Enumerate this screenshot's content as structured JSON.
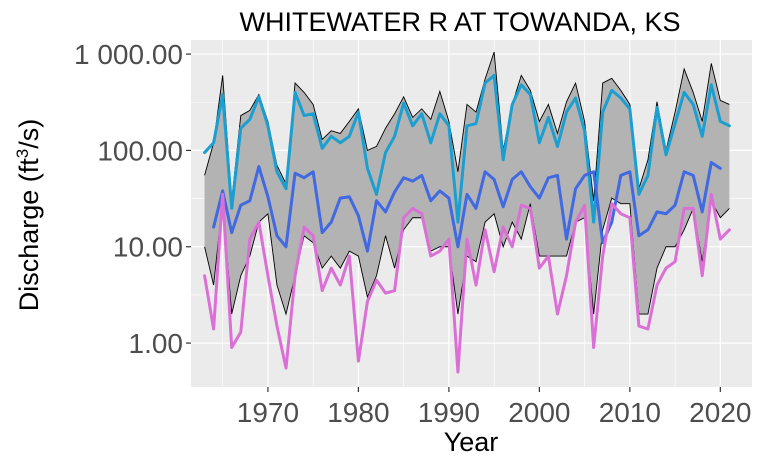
{
  "chart_data": {
    "type": "line",
    "title": "WHITEWATER R AT TOWANDA, KS",
    "xlabel": "Year",
    "ylabel": {
      "prefix": "Discharge (ft",
      "sup": "3",
      "suffix": "/s)"
    },
    "y_scale": "log10",
    "xlim": [
      1961.5,
      2023.5
    ],
    "ylim": [
      0.35,
      1400
    ],
    "x_ticks": [
      1970,
      1980,
      1990,
      2000,
      2010,
      2020
    ],
    "x_tick_labels": [
      "1970",
      "1980",
      "1990",
      "2000",
      "2010",
      "2020"
    ],
    "y_ticks": [
      1,
      10,
      100,
      1000
    ],
    "y_tick_labels": [
      "1.00",
      "10.00",
      "100.00",
      "1 000.00"
    ],
    "grid": true,
    "panel_background": "#ebebeb",
    "band": {
      "fill": "#b3b3b3",
      "stroke": "#000000",
      "x": [
        1963,
        1964,
        1965,
        1966,
        1967,
        1968,
        1969,
        1970,
        1971,
        1972,
        1973,
        1974,
        1975,
        1976,
        1977,
        1978,
        1979,
        1980,
        1981,
        1982,
        1983,
        1984,
        1985,
        1986,
        1987,
        1988,
        1989,
        1990,
        1991,
        1992,
        1993,
        1994,
        1995,
        1996,
        1997,
        1998,
        1999,
        2000,
        2001,
        2002,
        2003,
        2004,
        2005,
        2006,
        2007,
        2008,
        2009,
        2010,
        2011,
        2012,
        2013,
        2014,
        2015,
        2016,
        2017,
        2018,
        2019,
        2020,
        2021
      ],
      "upper": [
        55,
        120,
        600,
        30,
        230,
        260,
        380,
        200,
        70,
        45,
        500,
        400,
        300,
        130,
        160,
        150,
        200,
        270,
        100,
        110,
        170,
        240,
        360,
        220,
        270,
        210,
        410,
        200,
        60,
        300,
        250,
        550,
        1050,
        100,
        300,
        600,
        420,
        200,
        300,
        150,
        320,
        500,
        200,
        30,
        500,
        560,
        420,
        300,
        40,
        80,
        320,
        100,
        250,
        700,
        400,
        200,
        800,
        330,
        300
      ],
      "lower": [
        10,
        4,
        30,
        2,
        5,
        8,
        18,
        22,
        4,
        2,
        5,
        13,
        11,
        6,
        8,
        6,
        9,
        8,
        3,
        5,
        13,
        6,
        15,
        20,
        20,
        9,
        10,
        10,
        2,
        8,
        7,
        18,
        22,
        10,
        18,
        12,
        28,
        8,
        8,
        8,
        8,
        18,
        20,
        2,
        15,
        32,
        28,
        28,
        2,
        2,
        6,
        10,
        10,
        15,
        25,
        7,
        30,
        20,
        25
      ]
    },
    "series": [
      {
        "color": "#1b9fd1",
        "x": [
          1963,
          1964,
          1965,
          1966,
          1967,
          1968,
          1969,
          1970,
          1971,
          1972,
          1973,
          1974,
          1975,
          1976,
          1977,
          1978,
          1979,
          1980,
          1981,
          1982,
          1983,
          1984,
          1985,
          1986,
          1987,
          1988,
          1989,
          1990,
          1991,
          1992,
          1993,
          1994,
          1995,
          1996,
          1997,
          1998,
          1999,
          2000,
          2001,
          2002,
          2003,
          2004,
          2005,
          2006,
          2007,
          2008,
          2009,
          2010,
          2011,
          2012,
          2013,
          2014,
          2015,
          2016,
          2017,
          2018,
          2019,
          2020,
          2021
        ],
        "values": [
          95,
          120,
          380,
          25,
          170,
          210,
          360,
          180,
          60,
          40,
          400,
          230,
          240,
          105,
          140,
          120,
          140,
          250,
          65,
          35,
          95,
          140,
          310,
          180,
          240,
          120,
          240,
          180,
          18,
          180,
          190,
          500,
          600,
          80,
          300,
          480,
          380,
          120,
          220,
          110,
          250,
          350,
          160,
          18,
          250,
          420,
          350,
          270,
          35,
          55,
          280,
          90,
          190,
          400,
          300,
          140,
          480,
          200,
          180
        ]
      },
      {
        "color": "#4169e1",
        "x": [
          1964,
          1965,
          1966,
          1967,
          1968,
          1969,
          1970,
          1971,
          1972,
          1973,
          1974,
          1975,
          1976,
          1977,
          1978,
          1979,
          1980,
          1981,
          1982,
          1983,
          1984,
          1985,
          1986,
          1987,
          1988,
          1989,
          1990,
          1991,
          1992,
          1993,
          1994,
          1995,
          1996,
          1997,
          1998,
          1999,
          2000,
          2001,
          2002,
          2003,
          2004,
          2005,
          2006,
          2007,
          2008,
          2009,
          2010,
          2011,
          2012,
          2013,
          2014,
          2015,
          2016,
          2017,
          2018,
          2019,
          2020
        ],
        "values": [
          16,
          38,
          14,
          27,
          30,
          68,
          33,
          13,
          10,
          58,
          52,
          60,
          14,
          18,
          32,
          33,
          21,
          9,
          30,
          23,
          37,
          52,
          48,
          55,
          30,
          38,
          32,
          10,
          35,
          25,
          60,
          50,
          26,
          50,
          60,
          42,
          32,
          52,
          55,
          12,
          40,
          55,
          60,
          11,
          18,
          55,
          60,
          13,
          15,
          23,
          22,
          27,
          60,
          55,
          23,
          75,
          65
        ]
      },
      {
        "color": "#da70d6",
        "x": [
          1963,
          1964,
          1965,
          1966,
          1967,
          1968,
          1969,
          1970,
          1971,
          1972,
          1973,
          1974,
          1975,
          1976,
          1977,
          1978,
          1979,
          1980,
          1981,
          1982,
          1983,
          1984,
          1985,
          1986,
          1987,
          1988,
          1989,
          1990,
          1991,
          1992,
          1993,
          1994,
          1995,
          1996,
          1997,
          1998,
          1999,
          2000,
          2001,
          2002,
          2003,
          2004,
          2005,
          2006,
          2007,
          2008,
          2009,
          2010,
          2011,
          2012,
          2013,
          2014,
          2015,
          2016,
          2017,
          2018,
          2019,
          2020,
          2021
        ],
        "values": [
          5,
          1.4,
          35,
          0.9,
          1.3,
          12,
          18,
          5,
          1.5,
          0.55,
          5,
          16,
          13,
          3.5,
          6,
          4,
          8,
          0.65,
          2.7,
          4.5,
          3.3,
          3.5,
          20,
          25,
          22,
          8,
          9,
          12,
          0.5,
          12,
          4,
          15,
          5.5,
          16,
          10,
          27,
          25,
          6,
          8,
          2,
          5,
          18,
          27,
          0.9,
          8,
          28,
          22,
          20,
          1.5,
          1.4,
          4,
          6,
          7,
          25,
          25,
          5,
          35,
          12,
          15
        ]
      }
    ]
  }
}
